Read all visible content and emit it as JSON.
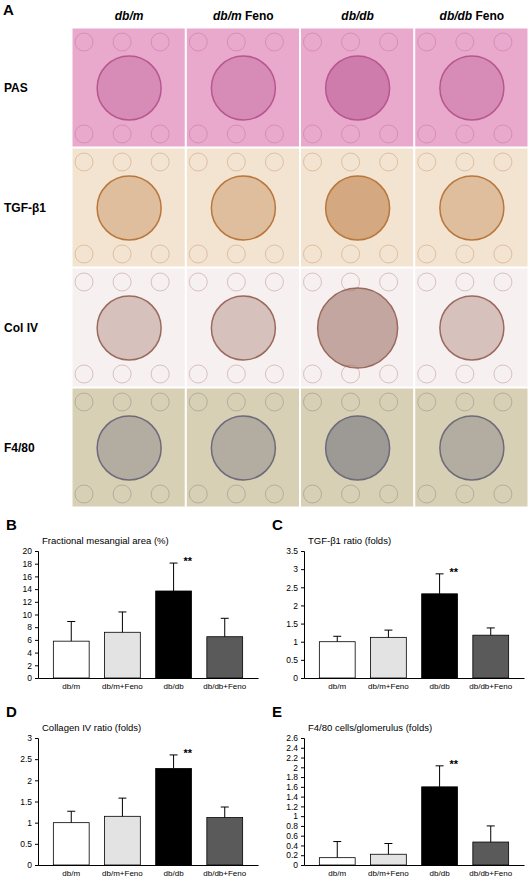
{
  "panel_a": {
    "letter": "A",
    "columns": [
      "db/m",
      "db/m Feno",
      "db/db",
      "db/db Feno"
    ],
    "rows": [
      "PAS",
      "TGF-β1",
      "Col IV",
      "F4/80"
    ]
  },
  "chart_data": [
    {
      "type": "bar",
      "panel": "B",
      "title": "Fractional mesangial area (%)",
      "categories": [
        "db/m",
        "db/m+Feno",
        "db/db",
        "db/db+Feno"
      ],
      "values": [
        5.8,
        7.2,
        13.7,
        6.5
      ],
      "errors": [
        3.1,
        3.2,
        4.4,
        2.9
      ],
      "colors": [
        "#ffffff",
        "#e3e3e3",
        "#000000",
        "#5a5a5a"
      ],
      "ylim": [
        0,
        20
      ],
      "yticks": [
        0,
        2,
        4,
        6,
        8,
        10,
        12,
        14,
        16,
        18,
        20
      ],
      "annotations": [
        {
          "text": "**",
          "x": "db/db"
        }
      ]
    },
    {
      "type": "bar",
      "panel": "C",
      "title": "TGF-β1 ratio (folds)",
      "categories": [
        "db/m",
        "db/m+Feno",
        "db/db",
        "db/db+Feno"
      ],
      "values": [
        1.0,
        1.12,
        2.32,
        1.18
      ],
      "errors": [
        0.15,
        0.2,
        0.55,
        0.2
      ],
      "colors": [
        "#ffffff",
        "#e3e3e3",
        "#000000",
        "#5a5a5a"
      ],
      "ylim": [
        0,
        3.5
      ],
      "yticks": [
        0,
        0.5,
        1,
        1.5,
        2,
        2.5,
        3,
        3.5
      ],
      "annotations": [
        {
          "text": "**",
          "x": "db/db"
        }
      ]
    },
    {
      "type": "bar",
      "panel": "D",
      "title": "Collagen IV ratio (folds)",
      "categories": [
        "db/m",
        "db/m+Feno",
        "db/db",
        "db/db+Feno"
      ],
      "values": [
        1.0,
        1.15,
        2.28,
        1.12
      ],
      "errors": [
        0.27,
        0.43,
        0.32,
        0.25
      ],
      "colors": [
        "#ffffff",
        "#e3e3e3",
        "#000000",
        "#5a5a5a"
      ],
      "ylim": [
        0,
        3
      ],
      "yticks": [
        0,
        0.5,
        1,
        1.5,
        2,
        2.5,
        3
      ],
      "annotations": [
        {
          "text": "**",
          "x": "db/db"
        }
      ]
    },
    {
      "type": "bar",
      "panel": "E",
      "title": "F4/80 cells/glomerulus (folds)",
      "categories": [
        "db/m",
        "db/m+Feno",
        "db/db",
        "db/db+Feno"
      ],
      "values": [
        0.15,
        0.22,
        1.6,
        0.47
      ],
      "errors": [
        0.33,
        0.22,
        0.43,
        0.33
      ],
      "colors": [
        "#ffffff",
        "#e3e3e3",
        "#000000",
        "#5a5a5a"
      ],
      "ylim": [
        0,
        2.6
      ],
      "yticks": [
        0,
        0.2,
        0.4,
        0.6,
        0.8,
        1,
        1.2,
        1.4,
        1.6,
        1.8,
        2,
        2.2,
        2.4,
        2.6
      ],
      "annotations": [
        {
          "text": "**",
          "x": "db/db"
        }
      ]
    }
  ]
}
